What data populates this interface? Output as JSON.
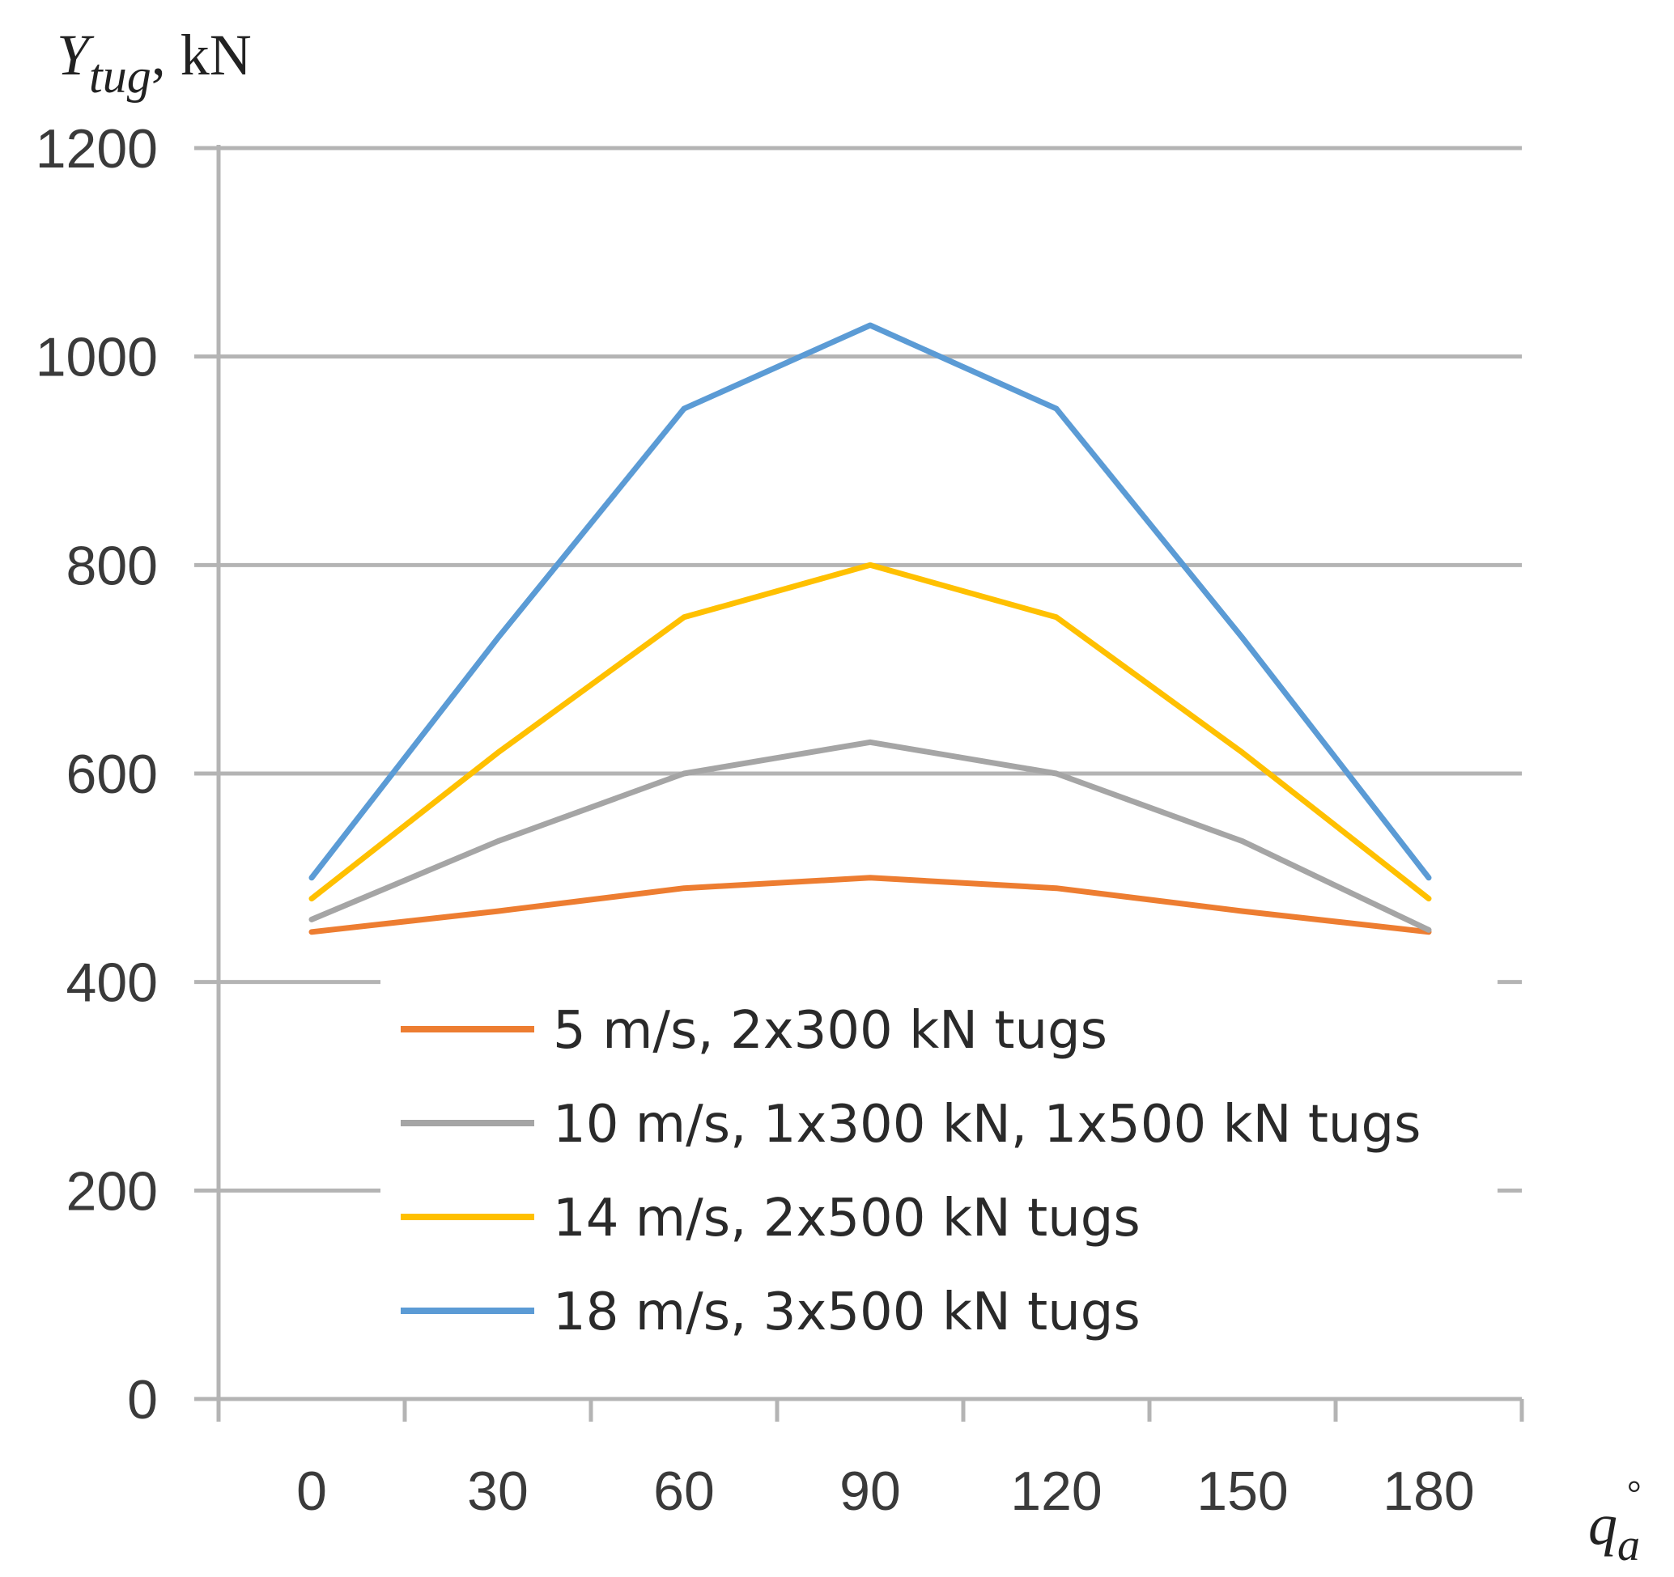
{
  "chart_data": {
    "type": "line",
    "title": "",
    "ylabel": {
      "symbol": "Y",
      "subscript": "tug",
      "unit": ", kN"
    },
    "xlabel": {
      "symbol": "q",
      "subscript": "a",
      "superscript": "°"
    },
    "categories": [
      "0",
      "30",
      "60",
      "90",
      "120",
      "150",
      "180"
    ],
    "ylim": [
      0,
      1200
    ],
    "yticks": [
      0,
      200,
      400,
      600,
      800,
      1000,
      1200
    ],
    "grid": true,
    "legend_position": "lower-center",
    "series": [
      {
        "name": "5 m/s, 2x300 kN tugs",
        "color": "#ED7D31",
        "values": [
          448,
          468,
          490,
          500,
          490,
          468,
          448
        ]
      },
      {
        "name": "10 m/s, 1x300 kN, 1x500 kN tugs",
        "color": "#A5A5A5",
        "values": [
          460,
          535,
          600,
          630,
          600,
          535,
          450
        ]
      },
      {
        "name": "14 m/s, 2x500 kN tugs",
        "color": "#FFC000",
        "values": [
          480,
          620,
          750,
          800,
          750,
          620,
          480
        ]
      },
      {
        "name": "18 m/s, 3x500 kN tugs",
        "color": "#5B9BD5",
        "values": [
          500,
          730,
          950,
          1030,
          950,
          730,
          500
        ]
      }
    ]
  }
}
